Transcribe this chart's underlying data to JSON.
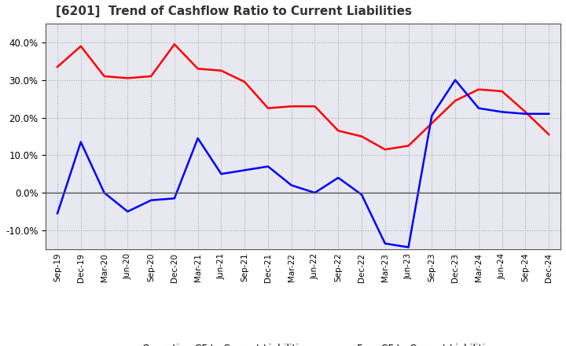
{
  "title": "[6201]  Trend of Cashflow Ratio to Current Liabilities",
  "title_fontsize": 11,
  "x_labels": [
    "Sep-19",
    "Dec-19",
    "Mar-20",
    "Jun-20",
    "Sep-20",
    "Dec-20",
    "Mar-21",
    "Jun-21",
    "Sep-21",
    "Dec-21",
    "Mar-22",
    "Jun-22",
    "Sep-22",
    "Dec-22",
    "Mar-23",
    "Jun-23",
    "Sep-23",
    "Dec-23",
    "Mar-24",
    "Jun-24",
    "Sep-24",
    "Dec-24"
  ],
  "operating_cf": [
    0.335,
    0.39,
    0.31,
    0.305,
    0.31,
    0.395,
    0.33,
    0.325,
    0.295,
    0.225,
    0.23,
    0.23,
    0.165,
    0.15,
    0.115,
    0.125,
    0.185,
    0.245,
    0.275,
    0.27,
    0.215,
    0.155
  ],
  "free_cf": [
    -0.055,
    0.135,
    0.0,
    -0.05,
    -0.02,
    -0.015,
    0.145,
    0.05,
    0.06,
    0.07,
    0.02,
    0.0,
    0.04,
    -0.005,
    -0.135,
    -0.145,
    0.205,
    0.3,
    0.225,
    0.215,
    0.21,
    0.21
  ],
  "operating_color": "#ff0000",
  "free_color": "#0000ff",
  "ylim": [
    -0.15,
    0.45
  ],
  "yticks": [
    -0.1,
    0.0,
    0.1,
    0.2,
    0.3,
    0.4
  ],
  "background_color": "#ffffff",
  "plot_bg_color": "#e8e8f0",
  "grid_color": "#aaaaaa",
  "legend_labels": [
    "Operating CF to Current Liabilities",
    "Free CF to Current Liabilities"
  ]
}
